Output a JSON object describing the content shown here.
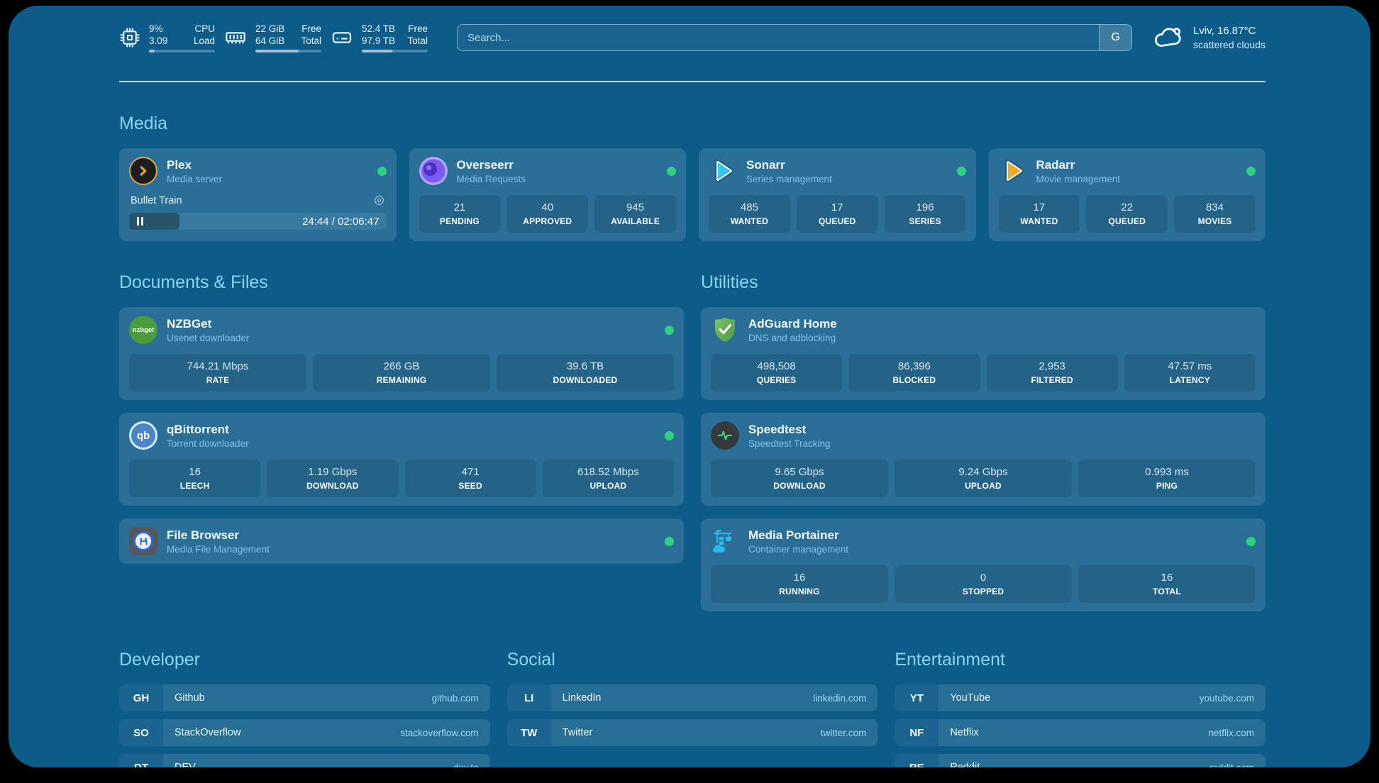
{
  "colors": {
    "panel_bg": "#0c5c8a",
    "accent_text": "#8dd3f4",
    "status_green": "#2ed17e",
    "plex_gold": "#e8a33d"
  },
  "header": {
    "metrics": [
      {
        "icon": "cpu-icon",
        "rows": [
          {
            "value": "9%",
            "label": "CPU"
          },
          {
            "value": "3.09",
            "label": "Load"
          }
        ],
        "progress_pct": 9
      },
      {
        "icon": "memory-icon",
        "rows": [
          {
            "value": "22 GiB",
            "label": "Free"
          },
          {
            "value": "64 GiB",
            "label": "Total"
          }
        ],
        "progress_pct": 66
      },
      {
        "icon": "disk-icon",
        "rows": [
          {
            "value": "52.4 TB",
            "label": "Free"
          },
          {
            "value": "97.9 TB",
            "label": "Total"
          }
        ],
        "progress_pct": 46
      }
    ],
    "search": {
      "placeholder": "Search...",
      "button_label": "G"
    },
    "weather": {
      "icon": "cloud-icon",
      "summary": "Lviv, 16.87°C",
      "detail": "scattered clouds"
    }
  },
  "media": {
    "title": "Media",
    "plex": {
      "icon": "plex-icon",
      "name": "Plex",
      "desc": "Media server",
      "status": "online",
      "now_playing": "Bullet Train",
      "time": "24:44 / 02:06:47",
      "progress_pct": 19.5
    },
    "overseerr": {
      "icon": "overseerr-icon",
      "name": "Overseerr",
      "desc": "Media Requests",
      "status": "online",
      "stats": [
        {
          "value": "21",
          "label": "PENDING"
        },
        {
          "value": "40",
          "label": "APPROVED"
        },
        {
          "value": "945",
          "label": "AVAILABLE"
        }
      ]
    },
    "sonarr": {
      "icon": "sonarr-icon",
      "name": "Sonarr",
      "desc": "Series management",
      "status": "online",
      "stats": [
        {
          "value": "485",
          "label": "WANTED"
        },
        {
          "value": "17",
          "label": "QUEUED"
        },
        {
          "value": "196",
          "label": "SERIES"
        }
      ]
    },
    "radarr": {
      "icon": "radarr-icon",
      "name": "Radarr",
      "desc": "Movie management",
      "status": "online",
      "stats": [
        {
          "value": "17",
          "label": "WANTED"
        },
        {
          "value": "22",
          "label": "QUEUED"
        },
        {
          "value": "834",
          "label": "MOVIES"
        }
      ]
    }
  },
  "documents": {
    "title": "Documents & Files",
    "nzbget": {
      "icon": "nzbget-icon",
      "abbr": "nzbget",
      "name": "NZBGet",
      "desc": "Usenet downloader",
      "status": "online",
      "stats": [
        {
          "value": "744.21 Mbps",
          "label": "RATE"
        },
        {
          "value": "266 GB",
          "label": "REMAINING"
        },
        {
          "value": "39.6 TB",
          "label": "DOWNLOADED"
        }
      ]
    },
    "qbittorrent": {
      "icon": "qbittorrent-icon",
      "abbr": "qb",
      "name": "qBittorrent",
      "desc": "Torrent downloader",
      "status": "online",
      "stats": [
        {
          "value": "16",
          "label": "LEECH"
        },
        {
          "value": "1.19 Gbps",
          "label": "DOWNLOAD"
        },
        {
          "value": "471",
          "label": "SEED"
        },
        {
          "value": "618.52 Mbps",
          "label": "UPLOAD"
        }
      ]
    },
    "filebrowser": {
      "icon": "filebrowser-icon",
      "name": "File Browser",
      "desc": "Media File Management",
      "status": "online"
    }
  },
  "utilities": {
    "title": "Utilities",
    "adguard": {
      "icon": "adguard-icon",
      "name": "AdGuard Home",
      "desc": "DNS and adblocking",
      "stats": [
        {
          "value": "498,508",
          "label": "QUERIES"
        },
        {
          "value": "86,396",
          "label": "BLOCKED"
        },
        {
          "value": "2,953",
          "label": "FILTERED"
        },
        {
          "value": "47.57 ms",
          "label": "LATENCY"
        }
      ]
    },
    "speedtest": {
      "icon": "speedtest-icon",
      "name": "Speedtest",
      "desc": "Speedtest Tracking",
      "stats": [
        {
          "value": "9.65 Gbps",
          "label": "DOWNLOAD"
        },
        {
          "value": "9.24 Gbps",
          "label": "UPLOAD"
        },
        {
          "value": "0.993 ms",
          "label": "PING"
        }
      ]
    },
    "portainer": {
      "icon": "portainer-icon",
      "name": "Media Portainer",
      "desc": "Container management",
      "status": "online",
      "stats": [
        {
          "value": "16",
          "label": "RUNNING"
        },
        {
          "value": "0",
          "label": "STOPPED"
        },
        {
          "value": "16",
          "label": "TOTAL"
        }
      ]
    }
  },
  "bookmarks": {
    "sections": [
      {
        "title": "Developer",
        "items": [
          {
            "abbr": "GH",
            "name": "Github",
            "url": "github.com"
          },
          {
            "abbr": "SO",
            "name": "StackOverflow",
            "url": "stackoverflow.com"
          },
          {
            "abbr": "DT",
            "name": "DEV",
            "url": "dev.to"
          }
        ]
      },
      {
        "title": "Social",
        "items": [
          {
            "abbr": "LI",
            "name": "LinkedIn",
            "url": "linkedin.com"
          },
          {
            "abbr": "TW",
            "name": "Twitter",
            "url": "twitter.com"
          }
        ]
      },
      {
        "title": "Entertainment",
        "items": [
          {
            "abbr": "YT",
            "name": "YouTube",
            "url": "youtube.com"
          },
          {
            "abbr": "NF",
            "name": "Netflix",
            "url": "netflix.com"
          },
          {
            "abbr": "RE",
            "name": "Reddit",
            "url": "reddit.com"
          }
        ]
      }
    ]
  }
}
